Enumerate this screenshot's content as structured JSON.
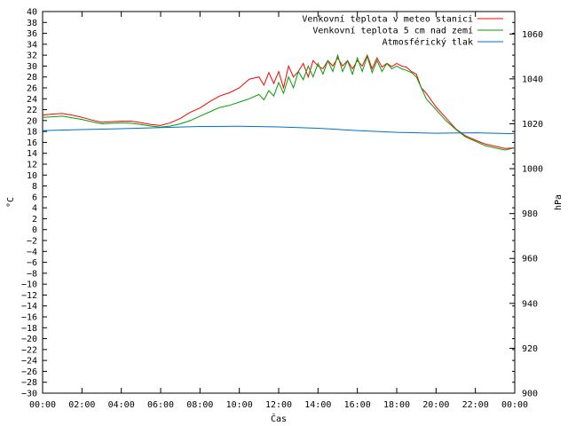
{
  "chart_data": {
    "type": "line",
    "xlabel": "Čas",
    "ylabel_left": "°C",
    "ylabel_right": "hPa",
    "x_range": [
      "00:00",
      "24:00"
    ],
    "x_tick_labels": [
      "00:00",
      "02:00",
      "04:00",
      "06:00",
      "08:00",
      "10:00",
      "12:00",
      "14:00",
      "16:00",
      "18:00",
      "20:00",
      "22:00",
      "00:00"
    ],
    "x_tick_hours": [
      0,
      2,
      4,
      6,
      8,
      10,
      12,
      14,
      16,
      18,
      20,
      22,
      24
    ],
    "ylim_left": [
      -30,
      40
    ],
    "y_left_step": 2,
    "ylim_right": [
      900,
      1070
    ],
    "y_right_ticks": [
      900,
      920,
      940,
      960,
      980,
      1000,
      1020,
      1040,
      1060
    ],
    "grid": false,
    "legend_position": "top-right",
    "series": [
      {
        "name": "Venkovní teplota v meteo stanici",
        "axis": "left",
        "color": "#ff0000",
        "x": [
          0,
          0.5,
          1,
          1.5,
          2,
          2.5,
          3,
          3.5,
          4,
          4.5,
          5,
          5.5,
          6,
          6.5,
          7,
          7.5,
          8,
          8.5,
          9,
          9.5,
          10,
          10.5,
          11,
          11.25,
          11.5,
          11.75,
          12,
          12.25,
          12.5,
          12.75,
          13,
          13.25,
          13.5,
          13.75,
          14,
          14.25,
          14.5,
          14.75,
          15,
          15.25,
          15.5,
          15.75,
          16,
          16.25,
          16.5,
          16.75,
          17,
          17.25,
          17.5,
          17.75,
          18,
          18.25,
          18.5,
          18.75,
          19,
          19.25,
          19.5,
          20,
          20.5,
          21,
          21.5,
          22,
          22.5,
          23,
          23.5,
          24
        ],
        "y": [
          21,
          21.2,
          21.3,
          21,
          20.6,
          20.1,
          19.7,
          19.8,
          19.9,
          19.9,
          19.6,
          19.3,
          19.1,
          19.6,
          20.4,
          21.5,
          22.3,
          23.5,
          24.5,
          25.1,
          26,
          27.6,
          28,
          26.5,
          28.8,
          26.8,
          29,
          26,
          30,
          28,
          29,
          30.5,
          28,
          31,
          30,
          29.5,
          31,
          30,
          31.5,
          30,
          31,
          29.5,
          31,
          30,
          32,
          29.5,
          31.5,
          29.8,
          30.5,
          29.9,
          30.5,
          30,
          29.8,
          29,
          28.5,
          26,
          25,
          22.5,
          20.5,
          18.5,
          17.2,
          16.4,
          15.7,
          15.3,
          14.9,
          15
        ]
      },
      {
        "name": "Venkovní teplota 5 cm nad zemí",
        "axis": "left",
        "color": "#00a000",
        "x": [
          0,
          0.5,
          1,
          1.5,
          2,
          2.5,
          3,
          3.5,
          4,
          4.5,
          5,
          5.5,
          6,
          6.5,
          7,
          7.5,
          8,
          8.5,
          9,
          9.5,
          10,
          10.5,
          11,
          11.25,
          11.5,
          11.75,
          12,
          12.25,
          12.5,
          12.75,
          13,
          13.25,
          13.5,
          13.75,
          14,
          14.25,
          14.5,
          14.75,
          15,
          15.25,
          15.5,
          15.75,
          16,
          16.25,
          16.5,
          16.75,
          17,
          17.25,
          17.5,
          17.75,
          18,
          18.25,
          18.5,
          18.75,
          19,
          19.25,
          19.5,
          20,
          20.5,
          21,
          21.5,
          22,
          22.5,
          23,
          23.5,
          24
        ],
        "y": [
          20.6,
          20.7,
          20.8,
          20.5,
          20.2,
          19.8,
          19.4,
          19.5,
          19.6,
          19.5,
          19.3,
          19.0,
          18.8,
          19.0,
          19.4,
          20,
          20.8,
          21.6,
          22.4,
          22.8,
          23.4,
          24,
          24.8,
          23.8,
          25.5,
          24.5,
          27,
          25,
          28,
          26,
          29,
          27.5,
          30,
          28,
          30.5,
          28.5,
          31,
          29,
          32,
          29,
          31,
          28.5,
          31.5,
          29,
          31.8,
          28.8,
          31,
          29,
          30.5,
          29.5,
          30,
          29.5,
          29.2,
          28.8,
          28,
          26,
          24,
          22,
          20,
          18.4,
          17,
          16.2,
          15.4,
          15,
          14.6,
          15
        ]
      },
      {
        "name": "Atmosférický tlak",
        "axis": "right",
        "color": "#0070c8",
        "x": [
          0,
          2,
          4,
          6,
          8,
          10,
          12,
          14,
          16,
          18,
          20,
          22,
          24
        ],
        "y": [
          1017,
          1017.4,
          1017.8,
          1018.3,
          1018.8,
          1018.9,
          1018.6,
          1018,
          1017,
          1016.2,
          1015.8,
          1016,
          1015.6
        ]
      }
    ]
  }
}
